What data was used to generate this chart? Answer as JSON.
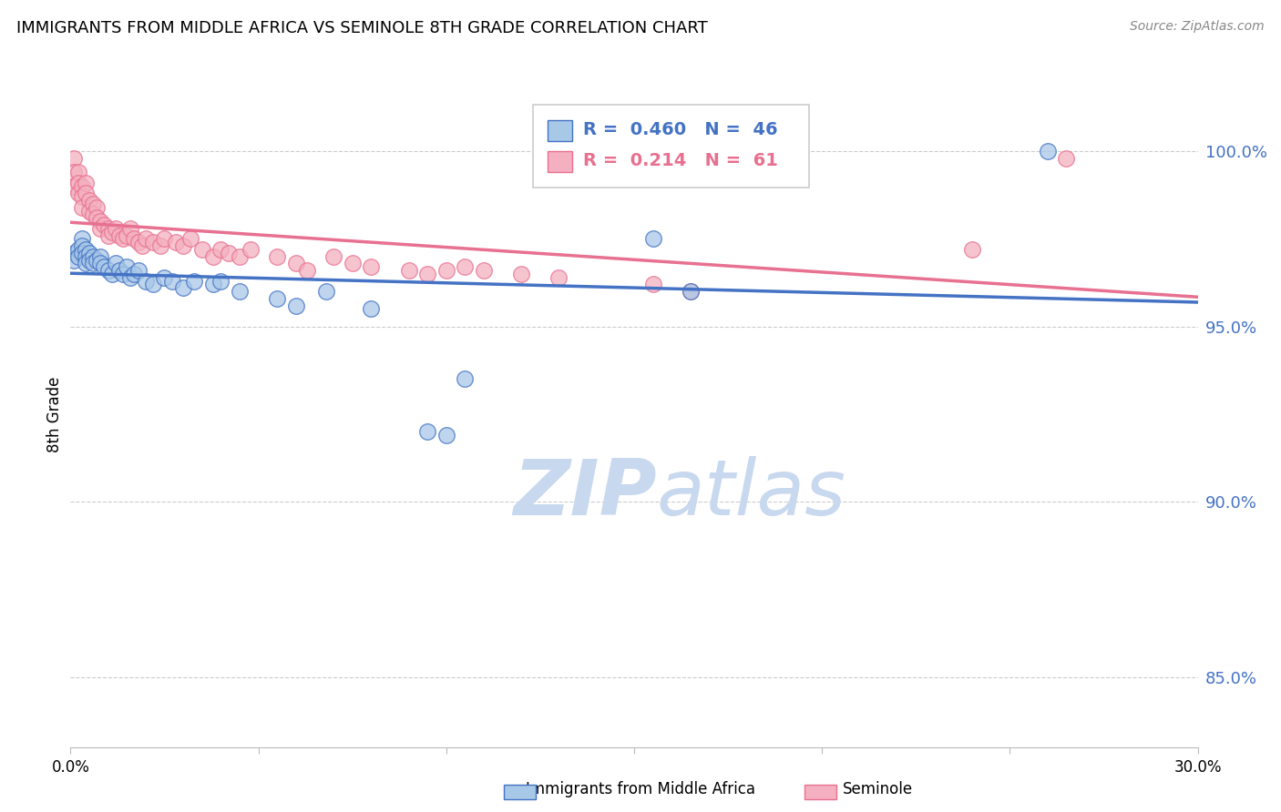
{
  "title": "IMMIGRANTS FROM MIDDLE AFRICA VS SEMINOLE 8TH GRADE CORRELATION CHART",
  "source": "Source: ZipAtlas.com",
  "ylabel": "8th Grade",
  "legend_blue_label": "Immigrants from Middle Africa",
  "legend_pink_label": "Seminole",
  "legend_blue_r": "0.460",
  "legend_blue_n": "46",
  "legend_pink_r": "0.214",
  "legend_pink_n": "61",
  "blue_color": "#a8c8e8",
  "pink_color": "#f4b0c0",
  "blue_line_color": "#4472c4",
  "pink_line_color": "#e87090",
  "watermark_zip": "ZIP",
  "watermark_atlas": "atlas",
  "watermark_color_zip": "#c8d8ee",
  "watermark_color_atlas": "#c8d8ee",
  "xlim": [
    0.0,
    0.3
  ],
  "ylim": [
    0.83,
    1.02
  ],
  "right_ytick_labels": [
    "100.0%",
    "95.0%",
    "90.0%",
    "85.0%"
  ],
  "right_ytick_vals": [
    1.0,
    0.95,
    0.9,
    0.85
  ],
  "blue_scatter_x": [
    0.001,
    0.001,
    0.002,
    0.002,
    0.003,
    0.003,
    0.003,
    0.004,
    0.004,
    0.004,
    0.005,
    0.005,
    0.006,
    0.006,
    0.007,
    0.008,
    0.008,
    0.009,
    0.01,
    0.011,
    0.012,
    0.013,
    0.014,
    0.015,
    0.016,
    0.017,
    0.018,
    0.02,
    0.022,
    0.025,
    0.027,
    0.03,
    0.033,
    0.038,
    0.04,
    0.045,
    0.055,
    0.06,
    0.068,
    0.08,
    0.095,
    0.1,
    0.105,
    0.155,
    0.165,
    0.26
  ],
  "blue_scatter_y": [
    0.971,
    0.969,
    0.972,
    0.97,
    0.975,
    0.973,
    0.971,
    0.972,
    0.97,
    0.968,
    0.971,
    0.969,
    0.97,
    0.968,
    0.969,
    0.97,
    0.968,
    0.967,
    0.966,
    0.965,
    0.968,
    0.966,
    0.965,
    0.967,
    0.964,
    0.965,
    0.966,
    0.963,
    0.962,
    0.964,
    0.963,
    0.961,
    0.963,
    0.962,
    0.963,
    0.96,
    0.958,
    0.956,
    0.96,
    0.955,
    0.92,
    0.919,
    0.935,
    0.975,
    0.96,
    1.0
  ],
  "pink_scatter_x": [
    0.001,
    0.001,
    0.001,
    0.002,
    0.002,
    0.002,
    0.003,
    0.003,
    0.003,
    0.004,
    0.004,
    0.005,
    0.005,
    0.006,
    0.006,
    0.007,
    0.007,
    0.008,
    0.008,
    0.009,
    0.01,
    0.01,
    0.011,
    0.012,
    0.013,
    0.014,
    0.015,
    0.016,
    0.017,
    0.018,
    0.019,
    0.02,
    0.022,
    0.024,
    0.025,
    0.028,
    0.03,
    0.032,
    0.035,
    0.038,
    0.04,
    0.042,
    0.045,
    0.048,
    0.055,
    0.06,
    0.063,
    0.07,
    0.075,
    0.08,
    0.09,
    0.095,
    0.1,
    0.105,
    0.11,
    0.12,
    0.13,
    0.155,
    0.165,
    0.24,
    0.265
  ],
  "pink_scatter_y": [
    0.998,
    0.994,
    0.99,
    0.994,
    0.991,
    0.988,
    0.99,
    0.987,
    0.984,
    0.991,
    0.988,
    0.986,
    0.983,
    0.985,
    0.982,
    0.984,
    0.981,
    0.98,
    0.978,
    0.979,
    0.978,
    0.976,
    0.977,
    0.978,
    0.976,
    0.975,
    0.976,
    0.978,
    0.975,
    0.974,
    0.973,
    0.975,
    0.974,
    0.973,
    0.975,
    0.974,
    0.973,
    0.975,
    0.972,
    0.97,
    0.972,
    0.971,
    0.97,
    0.972,
    0.97,
    0.968,
    0.966,
    0.97,
    0.968,
    0.967,
    0.966,
    0.965,
    0.966,
    0.967,
    0.966,
    0.965,
    0.964,
    0.962,
    0.96,
    0.972,
    0.998
  ]
}
